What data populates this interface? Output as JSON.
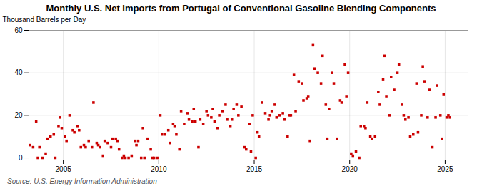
{
  "chart_data": {
    "type": "scatter",
    "title": "Monthly U.S. Net Imports from Portugal of Conventional Gasoline Blending Components",
    "ylabel": "Thousand Barrels per Day",
    "source": "Source: U.S. Energy Information Administration",
    "color": "#cc0000",
    "marker": "square",
    "grid": true,
    "xlim": [
      2003.2,
      2026.2
    ],
    "ylim": [
      -1,
      60
    ],
    "xticks": [
      2005,
      2010,
      2015,
      2020,
      2025
    ],
    "yticks": [
      0,
      20,
      40,
      60
    ],
    "x": [
      2003.25,
      2003.42,
      2003.58,
      2003.67,
      2003.75,
      2003.92,
      2004.08,
      2004.17,
      2004.33,
      2004.5,
      2004.58,
      2004.75,
      2004.83,
      2004.92,
      2005.08,
      2005.17,
      2005.33,
      2005.5,
      2005.58,
      2005.75,
      2005.83,
      2005.92,
      2006.08,
      2006.17,
      2006.33,
      2006.5,
      2006.58,
      2006.75,
      2006.83,
      2006.92,
      2007.08,
      2007.17,
      2007.33,
      2007.5,
      2007.58,
      2007.75,
      2007.83,
      2007.92,
      2008.08,
      2008.17,
      2008.25,
      2008.42,
      2008.58,
      2008.75,
      2008.83,
      2008.92,
      2009.08,
      2009.17,
      2009.25,
      2009.42,
      2009.58,
      2009.67,
      2009.75,
      2009.92,
      2010.08,
      2010.17,
      2010.33,
      2010.5,
      2010.58,
      2010.75,
      2010.83,
      2010.92,
      2011.08,
      2011.17,
      2011.33,
      2011.5,
      2011.58,
      2011.75,
      2011.83,
      2011.92,
      2012.08,
      2012.17,
      2012.33,
      2012.5,
      2012.58,
      2012.75,
      2012.83,
      2012.92,
      2013.08,
      2013.17,
      2013.33,
      2013.5,
      2013.58,
      2013.75,
      2013.83,
      2013.92,
      2014.08,
      2014.17,
      2014.33,
      2014.5,
      2014.58,
      2014.75,
      2014.83,
      2014.92,
      2015.08,
      2015.17,
      2015.25,
      2015.42,
      2015.58,
      2015.75,
      2015.83,
      2015.92,
      2016.08,
      2016.17,
      2016.33,
      2016.5,
      2016.58,
      2016.75,
      2016.83,
      2016.92,
      2017.08,
      2017.17,
      2017.33,
      2017.5,
      2017.58,
      2017.75,
      2017.83,
      2017.92,
      2018.08,
      2018.17,
      2018.33,
      2018.5,
      2018.58,
      2018.75,
      2018.83,
      2018.92,
      2019.08,
      2019.17,
      2019.33,
      2019.5,
      2019.58,
      2019.75,
      2019.83,
      2019.92,
      2020.08,
      2020.17,
      2020.33,
      2020.5,
      2020.58,
      2020.75,
      2020.83,
      2020.92,
      2021.08,
      2021.17,
      2021.33,
      2021.5,
      2021.58,
      2021.75,
      2021.83,
      2021.92,
      2022.08,
      2022.17,
      2022.33,
      2022.5,
      2022.58,
      2022.75,
      2022.83,
      2022.92,
      2023.08,
      2023.17,
      2023.33,
      2023.5,
      2023.58,
      2023.75,
      2023.83,
      2023.92,
      2024.08,
      2024.17,
      2024.33,
      2024.5,
      2024.58,
      2024.75,
      2024.83,
      2024.92,
      2025.08,
      2025.17,
      2025.25
    ],
    "values": [
      6,
      5,
      17,
      0,
      5,
      0,
      2,
      9,
      10,
      11,
      0,
      15,
      19,
      14,
      10,
      8,
      20,
      13,
      12,
      15,
      13,
      5,
      6,
      5,
      8,
      5,
      26,
      7,
      6,
      5,
      1,
      8,
      7,
      5,
      9,
      9,
      8,
      4,
      0,
      1,
      0,
      0,
      1,
      8,
      6,
      8,
      0,
      14,
      0,
      9,
      4,
      0,
      0,
      0,
      20,
      11,
      11,
      13,
      7,
      16,
      15,
      11,
      4,
      22,
      16,
      21,
      18,
      17,
      23,
      17,
      5,
      18,
      16,
      22,
      20,
      19,
      23,
      17,
      14,
      20,
      22,
      25,
      18,
      15,
      18,
      23,
      25,
      20,
      24,
      5,
      4,
      16,
      3,
      20,
      0,
      12,
      10,
      26,
      21,
      18,
      20,
      22,
      25,
      19,
      20,
      21,
      18,
      10,
      20,
      20,
      39,
      22,
      36,
      35,
      27,
      28,
      29,
      8,
      53,
      42,
      40,
      35,
      48,
      25,
      9,
      23,
      40,
      35,
      9,
      27,
      26,
      44,
      29,
      40,
      2,
      1,
      3,
      0,
      15,
      15,
      14,
      26,
      10,
      9,
      10,
      31,
      25,
      37,
      48,
      29,
      20,
      38,
      32,
      40,
      44,
      25,
      20,
      18,
      19,
      10,
      11,
      35,
      12,
      20,
      43,
      36,
      19,
      32,
      5,
      19,
      34,
      20,
      9,
      30,
      19,
      20,
      19
    ]
  }
}
